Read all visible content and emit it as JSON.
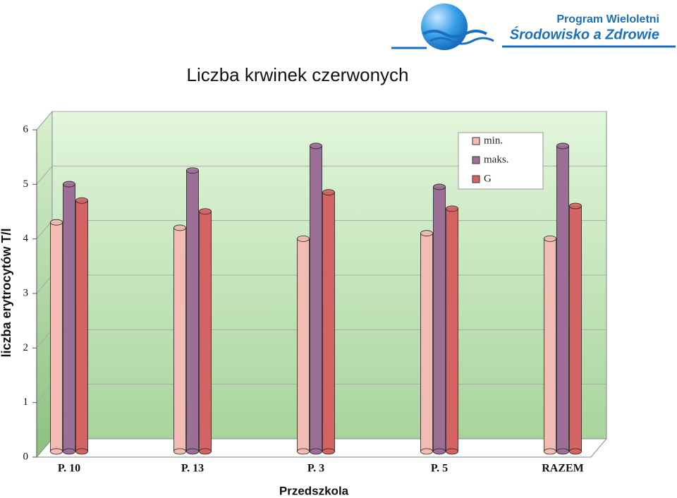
{
  "chart_data": {
    "type": "bar3d",
    "header": {
      "program": "Program Wieloletni",
      "subtitle": "Środowisko a Zdrowie"
    },
    "title": "Liczba krwinek czerwonych",
    "y_label": "liczba erytrocytów  T/l",
    "x_label": "Przedszkola",
    "categories": [
      "P. 10",
      "P. 13",
      "P. 3",
      "P. 5",
      "RAZEM"
    ],
    "series": [
      {
        "name": "min.",
        "color": "#f2bcb4",
        "values": [
          4.2,
          4.1,
          3.9,
          4.0,
          3.9
        ]
      },
      {
        "name": "maks.",
        "color": "#9c7096",
        "values": [
          4.9,
          5.15,
          5.6,
          4.85,
          5.6
        ]
      },
      {
        "name": "G",
        "color": "#d46464",
        "values": [
          4.6,
          4.4,
          4.75,
          4.45,
          4.5
        ]
      }
    ],
    "ylim": [
      0,
      6
    ],
    "yticks": [
      0,
      1,
      2,
      3,
      4,
      5,
      6
    ],
    "grid": true,
    "legend": "upper right"
  }
}
